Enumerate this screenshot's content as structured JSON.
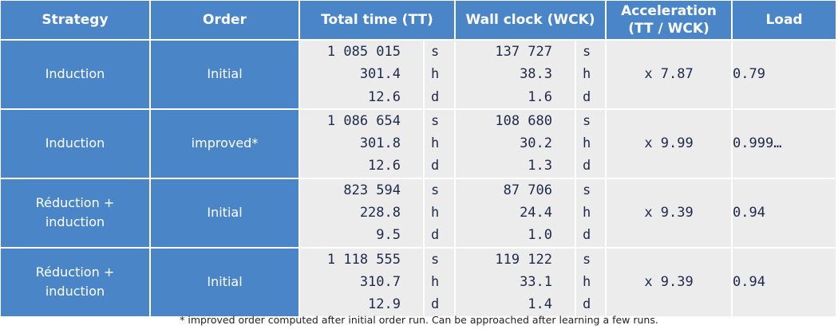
{
  "headers": {
    "strategy": "Strategy",
    "order": "Order",
    "total_time": "Total time (TT)",
    "wall_clock": "Wall clock (WCK)",
    "acceleration_line1": "Acceleration",
    "acceleration_line2": "(TT / WCK)",
    "load": "Load"
  },
  "rows": [
    {
      "strategy_line1": "Induction",
      "strategy_line2": "",
      "order": "Initial",
      "tt": [
        "1 085 015",
        "301.4",
        "12.6"
      ],
      "tt_units": [
        "s",
        "h",
        "d"
      ],
      "wck": [
        "137 727",
        "38.3",
        "1.6"
      ],
      "wck_units": [
        "s",
        "h",
        "d"
      ],
      "acceleration": "x 7.87",
      "load": "0.79"
    },
    {
      "strategy_line1": "Induction",
      "strategy_line2": "",
      "order": "improved*",
      "tt": [
        "1 086 654",
        "301.8",
        "12.6"
      ],
      "tt_units": [
        "s",
        "h",
        "d"
      ],
      "wck": [
        "108 680",
        "30.2",
        "1.3"
      ],
      "wck_units": [
        "s",
        "h",
        "d"
      ],
      "acceleration": "x 9.99",
      "load": "0.999…"
    },
    {
      "strategy_line1": "Réduction +",
      "strategy_line2": "induction",
      "order": "Initial",
      "tt": [
        "823 594",
        "228.8",
        "9.5"
      ],
      "tt_units": [
        "s",
        "h",
        "d"
      ],
      "wck": [
        "87 706",
        "24.4",
        "1.0"
      ],
      "wck_units": [
        "s",
        "h",
        "d"
      ],
      "acceleration": "x 9.39",
      "load": "0.94"
    },
    {
      "strategy_line1": "Réduction +",
      "strategy_line2": "induction",
      "order": "Initial",
      "tt": [
        "1 118 555",
        "310.7",
        "12.9"
      ],
      "tt_units": [
        "s",
        "h",
        "d"
      ],
      "wck": [
        "119 122",
        "33.1",
        "1.4"
      ],
      "wck_units": [
        "s",
        "h",
        "d"
      ],
      "acceleration": "x 9.39",
      "load": "0.94"
    }
  ],
  "footnote": "* improved order computed after initial order run. Can be approached after learning a few runs.",
  "colors": {
    "header_blue": "#4a86c7",
    "cell_grey": "#ececec",
    "value_text": "#1f2a4a"
  }
}
